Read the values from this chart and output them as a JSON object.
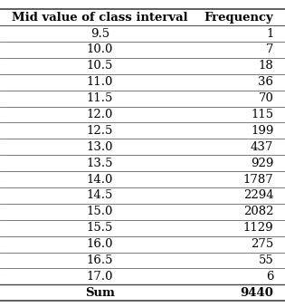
{
  "col1_header": "Mid value of class interval",
  "col2_header": "Frequency",
  "rows": [
    [
      "9.5",
      "1"
    ],
    [
      "10.0",
      "7"
    ],
    [
      "10.5",
      "18"
    ],
    [
      "11.0",
      "36"
    ],
    [
      "11.5",
      "70"
    ],
    [
      "12.0",
      "115"
    ],
    [
      "12.5",
      "199"
    ],
    [
      "13.0",
      "437"
    ],
    [
      "13.5",
      "929"
    ],
    [
      "14.0",
      "1787"
    ],
    [
      "14.5",
      "2294"
    ],
    [
      "15.0",
      "2082"
    ],
    [
      "15.5",
      "1129"
    ],
    [
      "16.0",
      "275"
    ],
    [
      "16.5",
      "55"
    ],
    [
      "17.0",
      "6"
    ]
  ],
  "sum_label": "Sum",
  "sum_value": "9440",
  "bg_color": "#ffffff",
  "text_color": "#000000",
  "header_fontsize": 9.5,
  "data_fontsize": 9.5,
  "sum_fontsize": 9.5
}
